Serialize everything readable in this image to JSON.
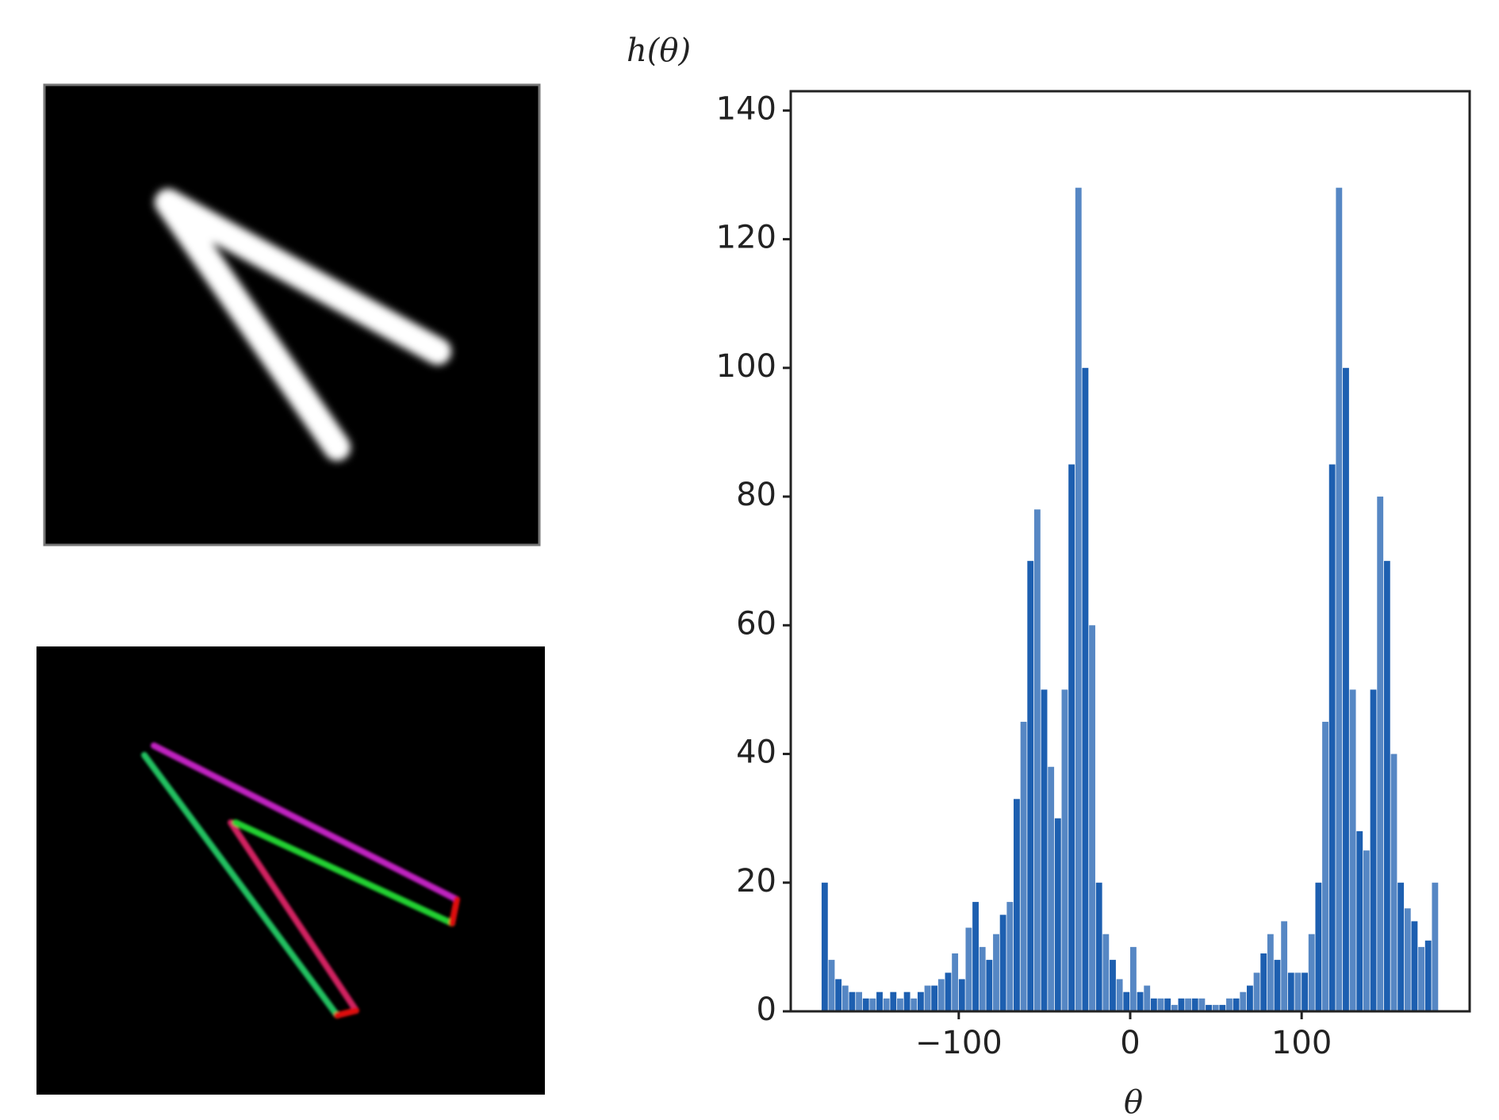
{
  "chart_data": {
    "type": "histogram",
    "x_label": "θ",
    "y_label": "h(θ)",
    "color": "#1d5fb0",
    "bins": [
      -180,
      -176,
      -172,
      -168,
      -164,
      -160,
      -156,
      -152,
      -148,
      -144,
      -140,
      -136,
      -132,
      -128,
      -124,
      -120,
      -116,
      -112,
      -108,
      -104,
      -100,
      -96,
      -92,
      -88,
      -84,
      -80,
      -76,
      -72,
      -68,
      -64,
      -60,
      -56,
      -52,
      -48,
      -44,
      -40,
      -36,
      -32,
      -28,
      -24,
      -20,
      -16,
      -12,
      -8,
      -4,
      0,
      4,
      8,
      12,
      16,
      20,
      24,
      28,
      32,
      36,
      40,
      44,
      48,
      52,
      56,
      60,
      64,
      68,
      72,
      76,
      80,
      84,
      88,
      92,
      96,
      100,
      104,
      108,
      112,
      116,
      120,
      124,
      128,
      132,
      136,
      140,
      144,
      148,
      152,
      156,
      160,
      164,
      168,
      172,
      176,
      180
    ],
    "values": [
      20,
      8,
      5,
      4,
      3,
      3,
      2,
      2,
      3,
      2,
      3,
      2,
      3,
      2,
      3,
      4,
      4,
      5,
      6,
      9,
      5,
      13,
      17,
      10,
      8,
      12,
      15,
      17,
      33,
      45,
      70,
      78,
      50,
      38,
      30,
      50,
      85,
      128,
      100,
      60,
      20,
      12,
      8,
      5,
      3,
      10,
      3,
      4,
      2,
      2,
      2,
      1,
      2,
      2,
      2,
      2,
      1,
      1,
      1,
      2,
      2,
      3,
      4,
      6,
      9,
      12,
      8,
      14,
      6,
      6,
      6,
      12,
      20,
      45,
      85,
      128,
      100,
      50,
      28,
      25,
      50,
      80,
      70,
      40,
      20,
      16,
      14,
      10,
      11,
      20
    ],
    "xlim": [
      -198,
      198
    ],
    "ylim": [
      0,
      143
    ],
    "xticks": [
      {
        "value": -100,
        "label": "−100"
      },
      0,
      100
    ],
    "yticks": [
      0,
      20,
      40,
      60,
      80,
      100,
      120,
      140
    ]
  }
}
